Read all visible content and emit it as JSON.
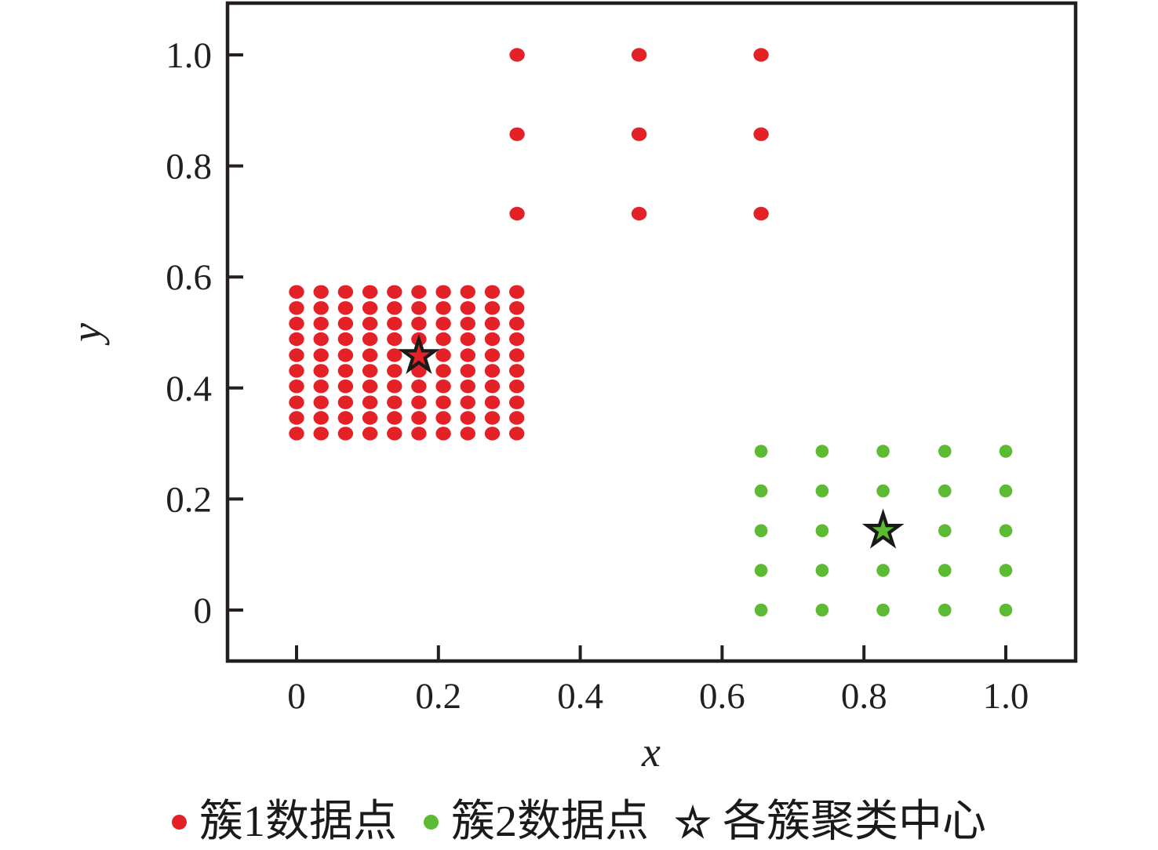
{
  "figure": {
    "background_color": "#ffffff",
    "axis_color": "#231f20",
    "text_color": "#231f20"
  },
  "chart_data": {
    "type": "scatter",
    "title": "",
    "xlabel": "x",
    "ylabel": "y",
    "xlim": [
      -0.097,
      1.098
    ],
    "ylim": [
      -0.092,
      1.093
    ],
    "grid": false,
    "legend_position": "bottom-center",
    "xticks": {
      "values": [
        0,
        0.2,
        0.4,
        0.6,
        0.8,
        1.0
      ],
      "labels": [
        "0",
        "0.2",
        "0.4",
        "0.6",
        "0.8",
        "1.0"
      ]
    },
    "yticks": {
      "values": [
        0,
        0.2,
        0.4,
        0.6,
        0.8,
        1.0
      ],
      "labels": [
        "0",
        "0.2",
        "0.4",
        "0.6",
        "0.8",
        "1.0"
      ]
    },
    "series": [
      {
        "name": "簇1数据点",
        "marker": "circle",
        "color": "#e32127",
        "point_grids": [
          {
            "x_values": [
              0,
              0.0345,
              0.069,
              0.1035,
              0.138,
              0.1725,
              0.207,
              0.2415,
              0.276,
              0.3105
            ],
            "y_values": [
              0.318,
              0.346,
              0.374,
              0.403,
              0.431,
              0.459,
              0.488,
              0.516,
              0.544,
              0.573
            ]
          },
          {
            "x_values": [
              0.311,
              0.483,
              0.655
            ],
            "y_values": [
              0.714,
              0.857,
              1.0
            ]
          }
        ]
      },
      {
        "name": "簇2数据点",
        "marker": "circle",
        "color": "#5cba33",
        "point_grids": [
          {
            "x_values": [
              0.655,
              0.741,
              0.827,
              0.914,
              1.0
            ],
            "y_values": [
              0,
              0.0715,
              0.143,
              0.2145,
              0.286
            ]
          }
        ]
      },
      {
        "name": "各簇聚类中心",
        "marker": "star",
        "edge_color": "#1a1a1a",
        "points": [
          {
            "x": 0.1725,
            "y": 0.4575,
            "fill": "#e32127"
          },
          {
            "x": 0.827,
            "y": 0.143,
            "fill": "#5cba33"
          }
        ]
      }
    ]
  },
  "legend": {
    "star_fill": "#ffffff",
    "star_edge": "#1a1a1a"
  }
}
